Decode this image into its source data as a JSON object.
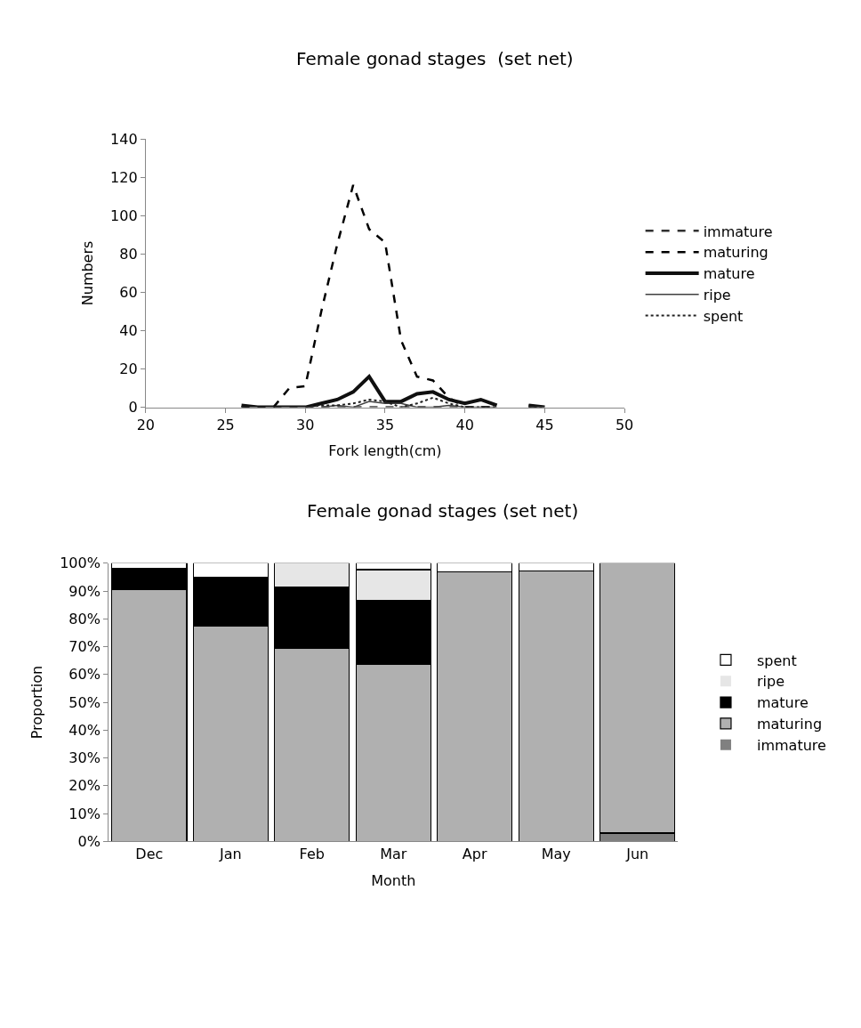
{
  "chart_data": [
    {
      "type": "line",
      "title": "Female gonad stages  (set net)",
      "xlabel": "Fork length(cm)",
      "ylabel": "Numbers",
      "x": [
        26,
        27,
        28,
        29,
        30,
        31,
        32,
        33,
        34,
        35,
        36,
        37,
        38,
        39,
        40,
        41,
        42,
        43,
        44,
        45
      ],
      "series": [
        {
          "name": "immature",
          "color": "#303030",
          "line_style": "dashed",
          "values": [
            0,
            0,
            0,
            0,
            0,
            0,
            0,
            0,
            0,
            0,
            0,
            0,
            0,
            0,
            0,
            0,
            0,
            null,
            0,
            0
          ]
        },
        {
          "name": "maturing",
          "color": "#000000",
          "line_style": "dashed",
          "values": [
            0,
            0,
            0,
            10,
            11,
            50,
            85,
            116,
            93,
            86,
            35,
            16,
            14,
            5,
            0,
            0,
            0,
            null,
            1,
            0
          ]
        },
        {
          "name": "mature",
          "color": "#101010",
          "line_style": "solid",
          "values": [
            1,
            0,
            0,
            0,
            0,
            2,
            4,
            8,
            16,
            3,
            3,
            7,
            8,
            4,
            2,
            4,
            1,
            null,
            1,
            0
          ]
        },
        {
          "name": "ripe",
          "color": "#404040",
          "line_style": "solid",
          "values": [
            null,
            null,
            null,
            null,
            null,
            0,
            1,
            0,
            3,
            2,
            2,
            0,
            0,
            1,
            0,
            0,
            0,
            null,
            0,
            0
          ]
        },
        {
          "name": "spent",
          "color": "#202020",
          "line_style": "dotted",
          "values": [
            null,
            null,
            null,
            null,
            0,
            1,
            1,
            2,
            4,
            3,
            0,
            2,
            5,
            2,
            0,
            0,
            0,
            null,
            0,
            0
          ]
        }
      ],
      "xlim": [
        20,
        50
      ],
      "xticks": [
        20,
        25,
        30,
        35,
        40,
        45,
        50
      ],
      "ylim": [
        0,
        140
      ],
      "yticks": [
        0,
        20,
        40,
        60,
        80,
        100,
        120,
        140
      ],
      "legend": "right",
      "marker": "none"
    },
    {
      "type": "bar",
      "stacked": true,
      "title": "Female gonad stages (set net)",
      "xlabel": "Month",
      "ylabel": "Proportion",
      "categories": [
        "Dec",
        "Jan",
        "Feb",
        "Mar",
        "Apr",
        "May",
        "Jun"
      ],
      "series": [
        {
          "name": "immature",
          "color": "#808080",
          "values": [
            0,
            0,
            0,
            0,
            0,
            0,
            3
          ]
        },
        {
          "name": "maturing",
          "color": "#b0b0b0",
          "values": [
            90.5,
            77.3,
            69.3,
            63.5,
            97,
            97.3,
            97
          ]
        },
        {
          "name": "mature",
          "color": "#000000",
          "values": [
            7.8,
            17.7,
            22.2,
            23,
            0,
            0,
            0
          ]
        },
        {
          "name": "ripe",
          "color": "#e6e6e6",
          "values": [
            0,
            0,
            8.5,
            11.2,
            0,
            0,
            0
          ]
        },
        {
          "name": "spent",
          "color": "#ffffff",
          "values": [
            1.7,
            5,
            0,
            2.3,
            3,
            2.7,
            0
          ]
        }
      ],
      "ylim": [
        0,
        100
      ],
      "yticks": [
        {
          "value": 0,
          "label": "0%"
        },
        {
          "value": 10,
          "label": "10%"
        },
        {
          "value": 20,
          "label": "20%"
        },
        {
          "value": 30,
          "label": "30%"
        },
        {
          "value": 40,
          "label": "40%"
        },
        {
          "value": 50,
          "label": "50%"
        },
        {
          "value": 60,
          "label": "60%"
        },
        {
          "value": 70,
          "label": "70%"
        },
        {
          "value": 80,
          "label": "80%"
        },
        {
          "value": 90,
          "label": "90%"
        },
        {
          "value": 100,
          "label": "100%"
        }
      ],
      "legend": "right"
    }
  ]
}
